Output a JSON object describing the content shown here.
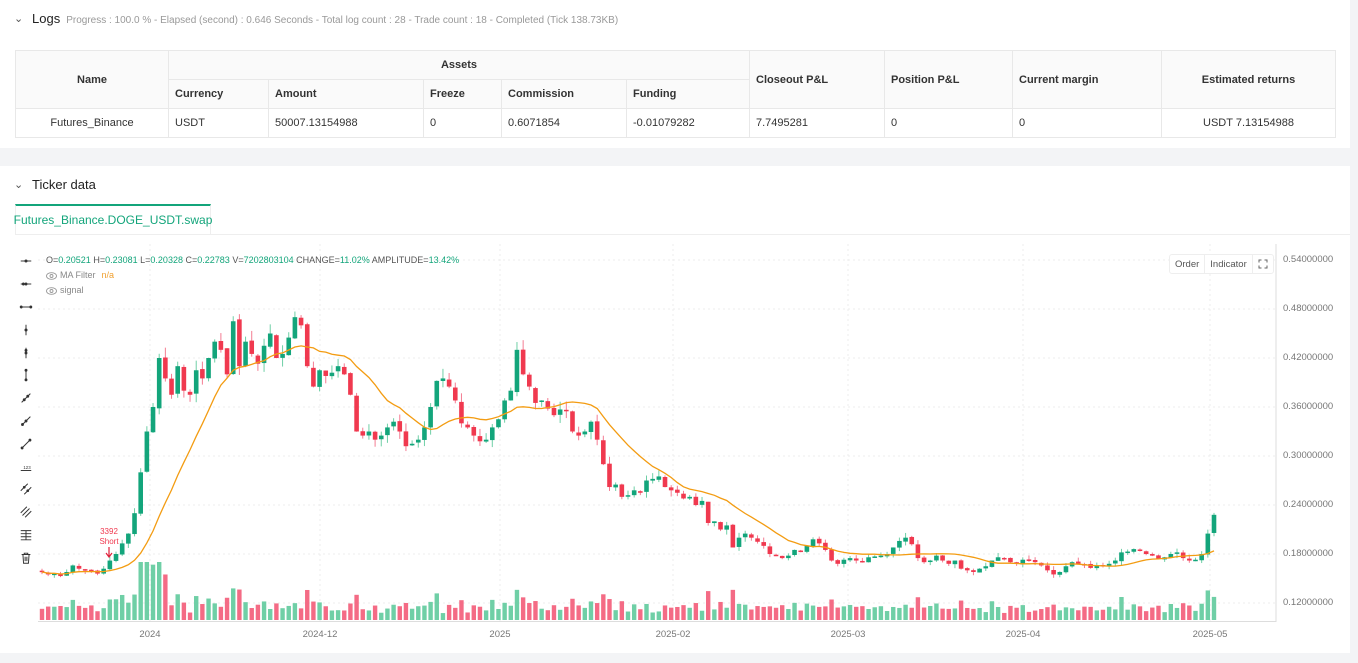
{
  "logs": {
    "title": "Logs",
    "meta": "Progress : 100.0 % - Elapsed (second) : 0.646  Seconds - Total log count : 28 - Trade count : 18 - Completed (Tick 138.73KB)",
    "table": {
      "headers": {
        "name": "Name",
        "assets": "Assets",
        "currency": "Currency",
        "amount": "Amount",
        "freeze": "Freeze",
        "commission": "Commission",
        "funding": "Funding",
        "closeout_pnl": "Closeout P&L",
        "position_pnl": "Position P&L",
        "current_margin": "Current margin",
        "estimated_returns": "Estimated returns"
      },
      "rows": [
        {
          "name": "Futures_Binance",
          "currency": "USDT",
          "amount": "50007.13154988",
          "freeze": "0",
          "commission": "0.6071854",
          "funding": "-0.01079282",
          "closeout_pnl": "7.7495281",
          "position_pnl": "0",
          "current_margin": "0",
          "estimated_returns": "USDT 7.13154988"
        }
      ]
    }
  },
  "ticker": {
    "title": "Ticker data",
    "tab_label": "Futures_Binance.DOGE_USDT.swap",
    "legend": {
      "o_label": "O=",
      "o": "0.20521",
      "h_label": "H=",
      "h": "0.23081",
      "l_label": "L=",
      "l": "0.20328",
      "c_label": "C=",
      "c": "0.22783",
      "v_label": "V=",
      "v": "7202803104",
      "change_label": "CHANGE=",
      "change": "11.02%",
      "amplitude_label": "AMPLITUDE=",
      "amplitude": "13.42%",
      "ma_filter_label": "MA Filter",
      "ma_filter_value": "n/a",
      "signal_label": "signal"
    },
    "buttons": {
      "order": "Order",
      "indicator": "Indicator"
    },
    "toolbar_icons": [
      "horizontal-line-icon",
      "horizontal-ray-icon",
      "horizontal-segment-icon",
      "vertical-line-icon",
      "vertical-ray-icon",
      "vertical-segment-icon",
      "trend-line-icon",
      "ray-line-icon",
      "segment-line-icon",
      "price-line-icon",
      "parallel-channel-icon",
      "price-channel-icon",
      "fibonacci-icon",
      "trash-icon"
    ],
    "signal_marker": {
      "id": "3392",
      "label": "Short"
    },
    "colors": {
      "up": "#13a57b",
      "down": "#f0394f",
      "up_vol": "#6fcfa6",
      "down_vol": "#f46b85",
      "ma": "#f39c12",
      "accent": "#13a57b"
    }
  },
  "chart_data": {
    "type": "candlestick",
    "title": "Futures_Binance.DOGE_USDT.swap",
    "y_ticks": [
      "0.54000000",
      "0.48000000",
      "0.42000000",
      "0.36000000",
      "0.30000000",
      "0.24000000",
      "0.18000000",
      "0.12000000"
    ],
    "x_ticks": [
      "2024",
      "2024-12",
      "2025",
      "2025-02",
      "2025-03",
      "2025-04",
      "2025-05"
    ],
    "ylim": [
      0.1,
      0.56
    ],
    "series": [
      {
        "name": "price_close_approx",
        "values": [
          0.158,
          0.155,
          0.156,
          0.153,
          0.158,
          0.166,
          0.162,
          0.16,
          0.159,
          0.156,
          0.162,
          0.172,
          0.18,
          0.193,
          0.205,
          0.23,
          0.28,
          0.33,
          0.36,
          0.42,
          0.395,
          0.375,
          0.41,
          0.38,
          0.375,
          0.405,
          0.395,
          0.42,
          0.44,
          0.43,
          0.4,
          0.465,
          0.41,
          0.44,
          0.425,
          0.413,
          0.435,
          0.45,
          0.42,
          0.425,
          0.445,
          0.47,
          0.46,
          0.41,
          0.385,
          0.405,
          0.398,
          0.402,
          0.41,
          0.4,
          0.375,
          0.33,
          0.325,
          0.33,
          0.32,
          0.325,
          0.335,
          0.342,
          0.33,
          0.312,
          0.315,
          0.32,
          0.335,
          0.36,
          0.392,
          0.395,
          0.385,
          0.368,
          0.34,
          0.335,
          0.325,
          0.318,
          0.32,
          0.335,
          0.345,
          0.368,
          0.38,
          0.43,
          0.4,
          0.385,
          0.365,
          0.368,
          0.358,
          0.35,
          0.357,
          0.355,
          0.33,
          0.325,
          0.33,
          0.342,
          0.32,
          0.29,
          0.262,
          0.265,
          0.25,
          0.252,
          0.258,
          0.255,
          0.27,
          0.272,
          0.275,
          0.262,
          0.258,
          0.255,
          0.248,
          0.25,
          0.24,
          0.245,
          0.218,
          0.22,
          0.21,
          0.215,
          0.188,
          0.2,
          0.205,
          0.2,
          0.195,
          0.19,
          0.18,
          0.178,
          0.175,
          0.178,
          0.185,
          0.183,
          0.19,
          0.198,
          0.193,
          0.185,
          0.172,
          0.168,
          0.173,
          0.175,
          0.172,
          0.17,
          0.176,
          0.177,
          0.178,
          0.18,
          0.188,
          0.196,
          0.2,
          0.192,
          0.175,
          0.17,
          0.172,
          0.178,
          0.172,
          0.168,
          0.172,
          0.162,
          0.16,
          0.158,
          0.162,
          0.165,
          0.172,
          0.176,
          0.175,
          0.17,
          0.168,
          0.173,
          0.172,
          0.17,
          0.166,
          0.16,
          0.155,
          0.158,
          0.165,
          0.17,
          0.168,
          0.167,
          0.163,
          0.166,
          0.165,
          0.168,
          0.172,
          0.182,
          0.183,
          0.186,
          0.184,
          0.18,
          0.178,
          0.174,
          0.176,
          0.18,
          0.182,
          0.175,
          0.172,
          0.173,
          0.18,
          0.205,
          0.228
        ]
      }
    ]
  }
}
